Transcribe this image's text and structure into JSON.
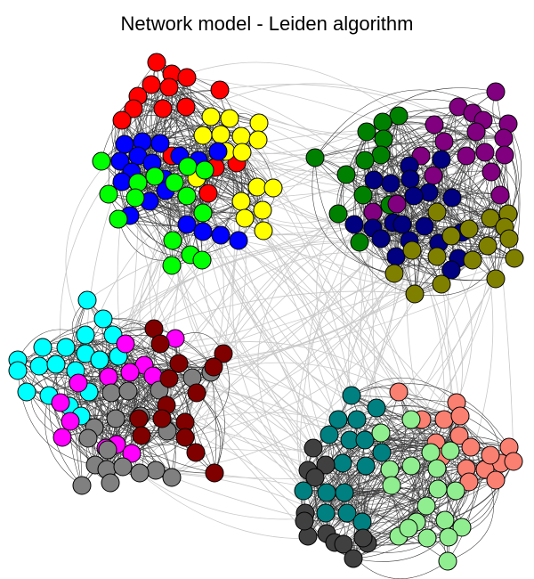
{
  "title": "Network model - Leiden algorithm",
  "colors": {
    "edge_inter": "#c8c8c8",
    "edge_intra": "#3c3c3c",
    "node_stroke": "#000000"
  },
  "communities": [
    {
      "name": "red",
      "color": "#ff0000"
    },
    {
      "name": "yellow",
      "color": "#ffff00"
    },
    {
      "name": "blue",
      "color": "#0000ff"
    },
    {
      "name": "lime",
      "color": "#00ff00"
    },
    {
      "name": "green",
      "color": "#008000"
    },
    {
      "name": "purple",
      "color": "#800080"
    },
    {
      "name": "navy",
      "color": "#000080"
    },
    {
      "name": "olive",
      "color": "#808000"
    },
    {
      "name": "cyan",
      "color": "#00ffff"
    },
    {
      "name": "magenta",
      "color": "#ff00ff"
    },
    {
      "name": "gray",
      "color": "#808080"
    },
    {
      "name": "maroon",
      "color": "#800000"
    },
    {
      "name": "teal",
      "color": "#008080"
    },
    {
      "name": "salmon",
      "color": "#fa8072"
    },
    {
      "name": "light-green",
      "color": "#90ee90"
    },
    {
      "name": "dark-gray",
      "color": "#404040"
    }
  ]
}
